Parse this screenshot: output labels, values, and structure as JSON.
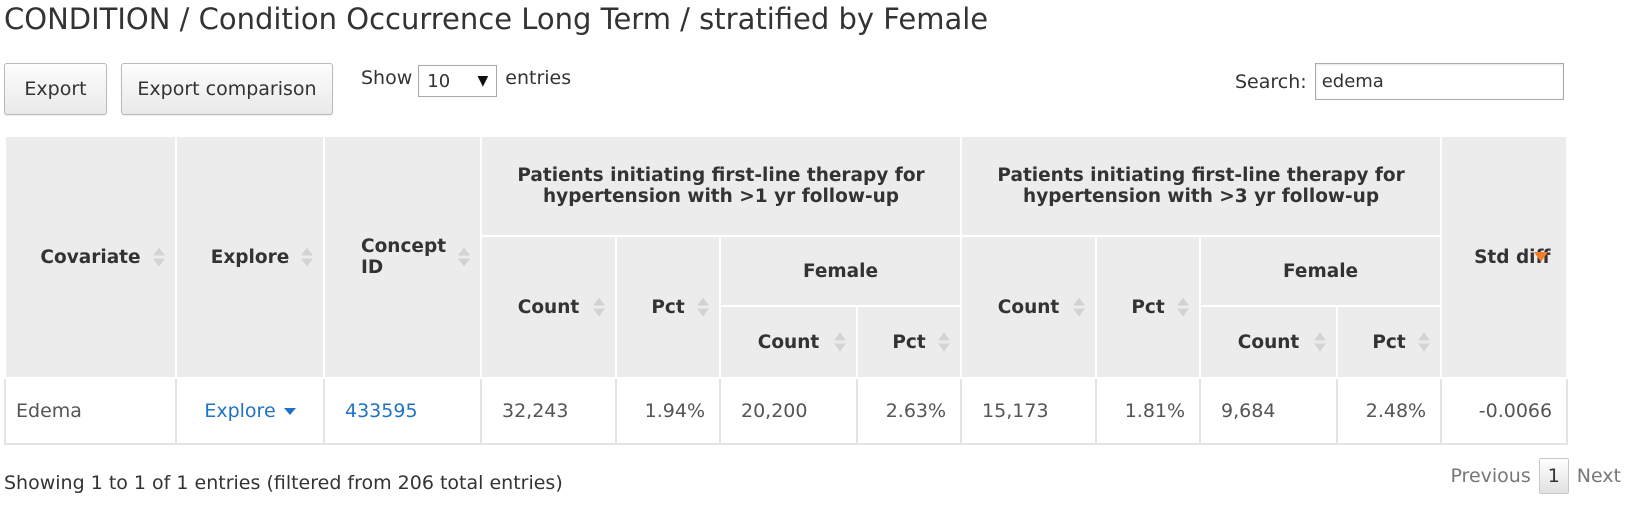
{
  "title": "CONDITION / Condition Occurrence Long Term / stratified by Female",
  "toolbar": {
    "export_label": "Export",
    "export_comparison_label": "Export comparison",
    "show_label": "Show",
    "entries_label": "entries",
    "page_length": "10",
    "search_label": "Search:",
    "search_value": "edema"
  },
  "table": {
    "headers": {
      "covariate": "Covariate",
      "explore": "Explore",
      "concept_id": "Concept ID",
      "group1": "Patients initiating first-line therapy for hypertension with >1 yr follow-up",
      "group2": "Patients initiating first-line therapy for hypertension with >3 yr follow-up",
      "count": "Count",
      "pct": "Pct",
      "female": "Female",
      "std_diff": "Std diff"
    },
    "rows": [
      {
        "covariate": "Edema",
        "explore": "Explore",
        "concept_id": "433595",
        "g1_count": "32,243",
        "g1_pct": "1.94%",
        "g1_female_count": "20,200",
        "g1_female_pct": "2.63%",
        "g2_count": "15,173",
        "g2_pct": "1.81%",
        "g2_female_count": "9,684",
        "g2_female_pct": "2.48%",
        "std_diff": "-0.0066"
      }
    ]
  },
  "footer": {
    "info": "Showing 1 to 1 of 1 entries (filtered from 206 total entries)",
    "previous": "Previous",
    "current_page": "1",
    "next": "Next"
  },
  "colors": {
    "link": "#1f73c4",
    "sort_active": "#f07e2a",
    "header_bg": "#ececec"
  }
}
